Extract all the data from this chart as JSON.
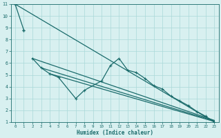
{
  "xlabel": "Humidex (Indice chaleur)",
  "bg_color": "#d8f0f0",
  "grid_color": "#aad8d8",
  "line_color": "#1a6b6b",
  "xlim": [
    -0.5,
    23.5
  ],
  "ylim": [
    1,
    11
  ],
  "xticks": [
    0,
    1,
    2,
    3,
    4,
    5,
    6,
    7,
    8,
    9,
    10,
    11,
    12,
    13,
    14,
    15,
    16,
    17,
    18,
    19,
    20,
    21,
    22,
    23
  ],
  "yticks": [
    1,
    2,
    3,
    4,
    5,
    6,
    7,
    8,
    9,
    10,
    11
  ],
  "line1": {
    "x": [
      0,
      1,
      22,
      23
    ],
    "y": [
      11.0,
      8.8,
      1.2,
      1.0
    ]
  },
  "line2": {
    "x": [
      2,
      22
    ],
    "y": [
      6.4,
      1.2
    ]
  },
  "line3": {
    "x": [
      3,
      22
    ],
    "y": [
      5.6,
      1.15
    ]
  },
  "line4": {
    "x": [
      4,
      22
    ],
    "y": [
      5.1,
      1.1
    ]
  },
  "wavy": {
    "x": [
      2,
      3,
      4,
      5,
      7,
      8,
      10,
      11,
      12,
      13,
      14,
      15,
      16,
      17,
      18,
      19,
      20,
      21,
      22,
      23
    ],
    "y": [
      6.4,
      5.6,
      5.1,
      4.8,
      3.0,
      3.7,
      4.5,
      5.8,
      6.4,
      5.4,
      5.2,
      4.7,
      4.1,
      3.8,
      3.2,
      2.8,
      2.4,
      1.9,
      1.5,
      1.0
    ]
  }
}
